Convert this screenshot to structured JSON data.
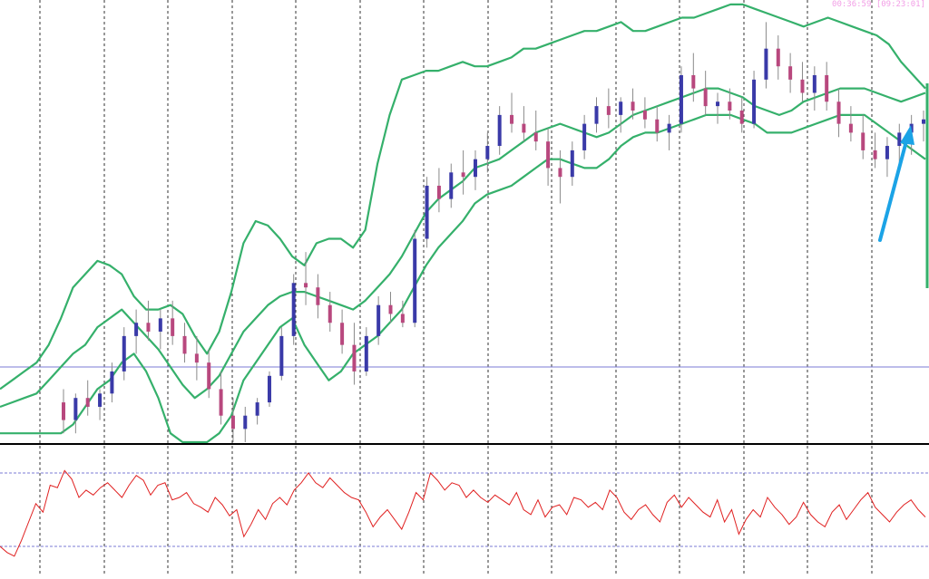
{
  "colors": {
    "background": "#ffffff",
    "bullish_candle": "#3a3aa8",
    "bearish_candle": "#b8487e",
    "wick": "#8a8a8a",
    "bollinger": "#35b06b",
    "oscillator": "#e02020",
    "arrow": "#1ba3e6",
    "level_line": "#7b7bd6",
    "grid": "#333333",
    "timer": "#f29ee6"
  },
  "timer": {
    "elapsed": "00:36:59",
    "remaining": "[09:23:01]"
  },
  "icons": {
    "trend_arrow": "up-arrow-icon"
  },
  "chart_data": [
    {
      "type": "candlestick",
      "title": "",
      "indicators": [
        "bollinger_bands"
      ],
      "grid": true,
      "legend": "none",
      "ylim": [
        0,
        100
      ],
      "horizontal_level": 17,
      "bb_mid": [
        8,
        9,
        10,
        11,
        14,
        17,
        20,
        22,
        26,
        28,
        30,
        27,
        24,
        21,
        17,
        13,
        10,
        12,
        15,
        20,
        25,
        28,
        31,
        33,
        34,
        34,
        33,
        32,
        31,
        30,
        32,
        35,
        38,
        42,
        47,
        52,
        55,
        57,
        59,
        62,
        63,
        64,
        66,
        68,
        70,
        71,
        72,
        71,
        70,
        69,
        70,
        72,
        74,
        75,
        76,
        77,
        78,
        79,
        80,
        80,
        79,
        78,
        76,
        75,
        74,
        75,
        77,
        78,
        79,
        80,
        80,
        80,
        79,
        78,
        77,
        78,
        79
      ],
      "bb_upper": [
        12,
        14,
        16,
        18,
        22,
        28,
        35,
        38,
        41,
        40,
        38,
        33,
        30,
        30,
        31,
        29,
        24,
        20,
        25,
        34,
        45,
        50,
        49,
        46,
        42,
        40,
        45,
        46,
        46,
        44,
        48,
        63,
        74,
        82,
        83,
        84,
        84,
        85,
        86,
        85,
        85,
        86,
        87,
        89,
        89,
        90,
        91,
        92,
        93,
        93,
        94,
        95,
        93,
        93,
        94,
        95,
        96,
        96,
        97,
        98,
        99,
        99,
        98,
        97,
        96,
        95,
        94,
        95,
        96,
        95,
        94,
        93,
        92,
        90,
        86,
        83,
        80
      ],
      "bb_lower": [
        2,
        2,
        2,
        2,
        2,
        2,
        4,
        8,
        12,
        14,
        18,
        20,
        16,
        10,
        2,
        0,
        0,
        0,
        2,
        6,
        14,
        18,
        22,
        26,
        28,
        22,
        18,
        14,
        16,
        20,
        22,
        24,
        27,
        30,
        35,
        40,
        44,
        47,
        50,
        54,
        56,
        57,
        58,
        60,
        62,
        64,
        64,
        63,
        62,
        62,
        64,
        67,
        69,
        70,
        70,
        71,
        72,
        73,
        74,
        74,
        74,
        73,
        72,
        70,
        70,
        70,
        71,
        72,
        73,
        74,
        74,
        74,
        72,
        70,
        68,
        66,
        64
      ],
      "candles": [
        {
          "o": 9,
          "h": 12,
          "l": 2,
          "c": 5
        },
        {
          "o": 5,
          "h": 11,
          "l": 2,
          "c": 10
        },
        {
          "o": 10,
          "h": 14,
          "l": 6,
          "c": 8
        },
        {
          "o": 8,
          "h": 12,
          "l": 5,
          "c": 11
        },
        {
          "o": 11,
          "h": 18,
          "l": 9,
          "c": 16
        },
        {
          "o": 16,
          "h": 26,
          "l": 14,
          "c": 24
        },
        {
          "o": 24,
          "h": 30,
          "l": 20,
          "c": 27
        },
        {
          "o": 27,
          "h": 32,
          "l": 23,
          "c": 25
        },
        {
          "o": 25,
          "h": 30,
          "l": 21,
          "c": 28
        },
        {
          "o": 28,
          "h": 32,
          "l": 22,
          "c": 24
        },
        {
          "o": 24,
          "h": 27,
          "l": 18,
          "c": 20
        },
        {
          "o": 20,
          "h": 24,
          "l": 14,
          "c": 18
        },
        {
          "o": 18,
          "h": 21,
          "l": 10,
          "c": 12
        },
        {
          "o": 12,
          "h": 16,
          "l": 4,
          "c": 6
        },
        {
          "o": 6,
          "h": 10,
          "l": 0,
          "c": 3
        },
        {
          "o": 3,
          "h": 8,
          "l": 0,
          "c": 6
        },
        {
          "o": 6,
          "h": 10,
          "l": 4,
          "c": 9
        },
        {
          "o": 9,
          "h": 16,
          "l": 8,
          "c": 15
        },
        {
          "o": 15,
          "h": 26,
          "l": 14,
          "c": 24
        },
        {
          "o": 24,
          "h": 38,
          "l": 22,
          "c": 36
        },
        {
          "o": 36,
          "h": 43,
          "l": 31,
          "c": 35
        },
        {
          "o": 35,
          "h": 38,
          "l": 28,
          "c": 31
        },
        {
          "o": 31,
          "h": 34,
          "l": 25,
          "c": 27
        },
        {
          "o": 27,
          "h": 30,
          "l": 20,
          "c": 22
        },
        {
          "o": 22,
          "h": 27,
          "l": 13,
          "c": 16
        },
        {
          "o": 16,
          "h": 26,
          "l": 15,
          "c": 24
        },
        {
          "o": 24,
          "h": 33,
          "l": 22,
          "c": 31
        },
        {
          "o": 31,
          "h": 34,
          "l": 27,
          "c": 29
        },
        {
          "o": 29,
          "h": 32,
          "l": 26,
          "c": 27
        },
        {
          "o": 27,
          "h": 48,
          "l": 26,
          "c": 46
        },
        {
          "o": 46,
          "h": 60,
          "l": 44,
          "c": 58
        },
        {
          "o": 58,
          "h": 62,
          "l": 52,
          "c": 55
        },
        {
          "o": 55,
          "h": 63,
          "l": 53,
          "c": 61
        },
        {
          "o": 61,
          "h": 66,
          "l": 56,
          "c": 60
        },
        {
          "o": 60,
          "h": 66,
          "l": 57,
          "c": 64
        },
        {
          "o": 64,
          "h": 70,
          "l": 61,
          "c": 67
        },
        {
          "o": 67,
          "h": 76,
          "l": 65,
          "c": 74
        },
        {
          "o": 74,
          "h": 79,
          "l": 70,
          "c": 72
        },
        {
          "o": 72,
          "h": 76,
          "l": 68,
          "c": 70
        },
        {
          "o": 70,
          "h": 75,
          "l": 66,
          "c": 68
        },
        {
          "o": 68,
          "h": 71,
          "l": 58,
          "c": 62
        },
        {
          "o": 62,
          "h": 66,
          "l": 54,
          "c": 60
        },
        {
          "o": 60,
          "h": 68,
          "l": 58,
          "c": 66
        },
        {
          "o": 66,
          "h": 74,
          "l": 64,
          "c": 72
        },
        {
          "o": 72,
          "h": 78,
          "l": 70,
          "c": 76
        },
        {
          "o": 76,
          "h": 80,
          "l": 71,
          "c": 74
        },
        {
          "o": 74,
          "h": 78,
          "l": 70,
          "c": 77
        },
        {
          "o": 77,
          "h": 80,
          "l": 73,
          "c": 75
        },
        {
          "o": 75,
          "h": 78,
          "l": 71,
          "c": 73
        },
        {
          "o": 73,
          "h": 76,
          "l": 68,
          "c": 70
        },
        {
          "o": 70,
          "h": 74,
          "l": 66,
          "c": 72
        },
        {
          "o": 72,
          "h": 85,
          "l": 70,
          "c": 83
        },
        {
          "o": 83,
          "h": 88,
          "l": 77,
          "c": 80
        },
        {
          "o": 80,
          "h": 84,
          "l": 74,
          "c": 76
        },
        {
          "o": 76,
          "h": 79,
          "l": 72,
          "c": 77
        },
        {
          "o": 77,
          "h": 80,
          "l": 73,
          "c": 75
        },
        {
          "o": 75,
          "h": 78,
          "l": 70,
          "c": 72
        },
        {
          "o": 72,
          "h": 84,
          "l": 71,
          "c": 82
        },
        {
          "o": 82,
          "h": 95,
          "l": 80,
          "c": 89
        },
        {
          "o": 89,
          "h": 92,
          "l": 82,
          "c": 85
        },
        {
          "o": 85,
          "h": 88,
          "l": 79,
          "c": 82
        },
        {
          "o": 82,
          "h": 86,
          "l": 77,
          "c": 79
        },
        {
          "o": 79,
          "h": 85,
          "l": 75,
          "c": 83
        },
        {
          "o": 83,
          "h": 86,
          "l": 75,
          "c": 77
        },
        {
          "o": 77,
          "h": 80,
          "l": 69,
          "c": 72
        },
        {
          "o": 72,
          "h": 76,
          "l": 68,
          "c": 70
        },
        {
          "o": 70,
          "h": 74,
          "l": 64,
          "c": 66
        },
        {
          "o": 66,
          "h": 70,
          "l": 62,
          "c": 64
        },
        {
          "o": 64,
          "h": 69,
          "l": 60,
          "c": 67
        },
        {
          "o": 67,
          "h": 72,
          "l": 63,
          "c": 70
        },
        {
          "o": 70,
          "h": 74,
          "l": 65,
          "c": 72
        },
        {
          "o": 72,
          "h": 75,
          "l": 68,
          "c": 73
        }
      ]
    },
    {
      "type": "line",
      "title": "",
      "grid": true,
      "ylim": [
        0,
        100
      ],
      "levels": [
        20,
        80
      ],
      "series": [
        {
          "values": [
            20,
            15,
            12,
            25,
            40,
            55,
            48,
            70,
            68,
            82,
            75,
            60,
            66,
            62,
            68,
            72,
            66,
            60,
            70,
            78,
            74,
            62,
            70,
            72,
            58,
            60,
            64,
            55,
            52,
            48,
            60,
            54,
            45,
            50,
            28,
            38,
            50,
            42,
            55,
            60,
            54,
            66,
            72,
            80,
            72,
            68,
            76,
            70,
            64,
            60,
            58,
            48,
            36,
            44,
            50,
            42,
            34,
            48,
            64,
            58,
            80,
            74,
            66,
            72,
            70,
            60,
            66,
            60,
            56,
            62,
            58,
            54,
            64,
            50,
            46,
            58,
            44,
            52,
            54,
            46,
            60,
            58,
            52,
            56,
            50,
            66,
            60,
            48,
            42,
            50,
            54,
            46,
            40,
            56,
            62,
            52,
            60,
            54,
            48,
            44,
            58,
            40,
            50,
            30,
            42,
            50,
            44,
            60,
            52,
            46,
            38,
            44,
            56,
            46,
            40,
            36,
            48,
            54,
            42,
            50,
            58,
            64,
            52,
            46,
            40,
            48,
            54,
            58,
            50,
            44
          ]
        }
      ]
    }
  ]
}
